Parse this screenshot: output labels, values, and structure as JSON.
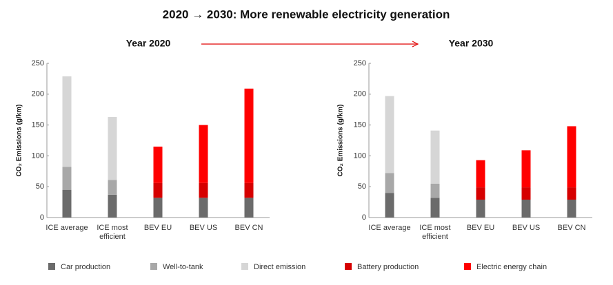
{
  "title": "2020 → 2030: More renewable electricity generation",
  "chart_data": [
    {
      "type": "bar",
      "stacked": true,
      "subtitle": "Year 2020",
      "y_label": "CO₂ Emissions (g/km)",
      "categories": [
        "ICE average",
        "ICE most efficient",
        "BEV EU",
        "BEV US",
        "BEV CN"
      ],
      "ylim": [
        0,
        250
      ],
      "yticks": [
        0,
        50,
        100,
        150,
        200,
        250
      ],
      "series": [
        {
          "name": "Car production",
          "color": "#6b6b6b",
          "values": [
            45,
            37,
            32,
            32,
            32
          ]
        },
        {
          "name": "Well-to-tank",
          "color": "#a8a8a8",
          "values": [
            37,
            24,
            0,
            0,
            0
          ]
        },
        {
          "name": "Direct emission",
          "color": "#d6d6d6",
          "values": [
            147,
            102,
            0,
            0,
            0
          ]
        },
        {
          "name": "Battery production",
          "color": "#d60000",
          "values": [
            0,
            0,
            24,
            24,
            24
          ]
        },
        {
          "name": "Electric energy chain",
          "color": "#ff0000",
          "values": [
            0,
            0,
            59,
            94,
            153
          ]
        }
      ]
    },
    {
      "type": "bar",
      "stacked": true,
      "subtitle": "Year 2030",
      "y_label": "CO₂ Emissions (g/km)",
      "categories": [
        "ICE average",
        "ICE most efficient",
        "BEV EU",
        "BEV US",
        "BEV CN"
      ],
      "ylim": [
        0,
        250
      ],
      "yticks": [
        0,
        50,
        100,
        150,
        200,
        250
      ],
      "series": [
        {
          "name": "Car production",
          "color": "#6b6b6b",
          "values": [
            40,
            32,
            29,
            29,
            29
          ]
        },
        {
          "name": "Well-to-tank",
          "color": "#a8a8a8",
          "values": [
            32,
            23,
            0,
            0,
            0
          ]
        },
        {
          "name": "Direct emission",
          "color": "#d6d6d6",
          "values": [
            125,
            86,
            0,
            0,
            0
          ]
        },
        {
          "name": "Battery production",
          "color": "#d60000",
          "values": [
            0,
            0,
            20,
            20,
            20
          ]
        },
        {
          "name": "Electric energy chain",
          "color": "#ff0000",
          "values": [
            0,
            0,
            44,
            60,
            99
          ]
        }
      ]
    }
  ]
}
